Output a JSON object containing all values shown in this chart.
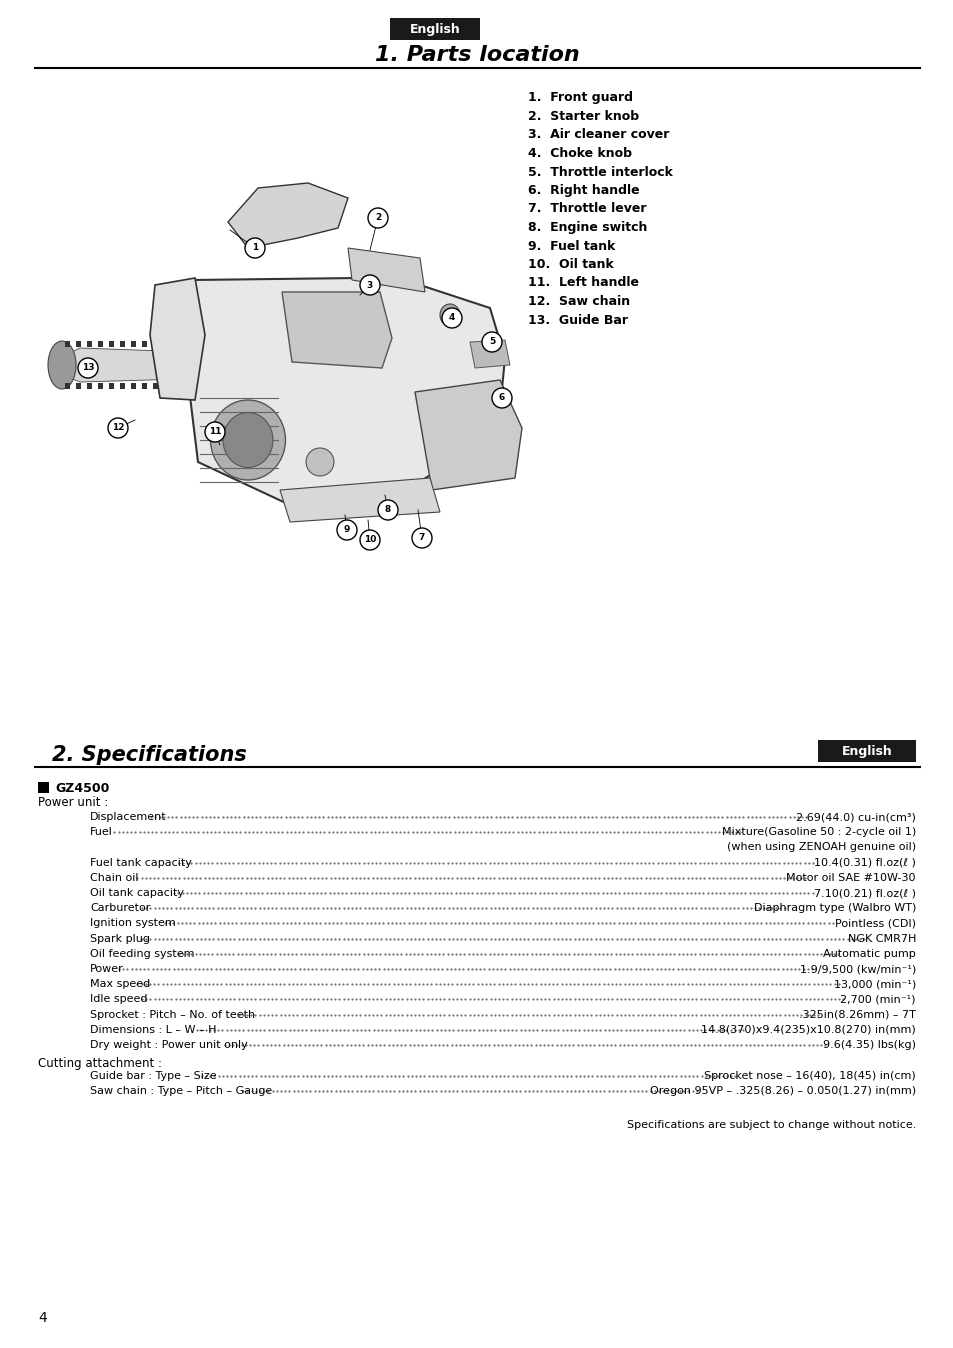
{
  "page_bg": "#ffffff",
  "page_width": 9.54,
  "page_height": 13.48,
  "top_label": "English",
  "top_label_bg": "#1a1a1a",
  "top_label_color": "#ffffff",
  "section1_title": "1. Parts location",
  "parts_list": [
    "1.  Front guard",
    "2.  Starter knob",
    "3.  Air cleaner cover",
    "4.  Choke knob",
    "5.  Throttle interlock",
    "6.  Right handle",
    "7.  Throttle lever",
    "8.  Engine switch",
    "9.  Fuel tank",
    "10.  Oil tank",
    "11.  Left handle",
    "12.  Saw chain",
    "13.  Guide Bar"
  ],
  "section2_title": "2. Specifications",
  "english_label2": "English",
  "model": "GZ4500",
  "power_unit_label": "Power unit :",
  "specs": [
    [
      "Displacement",
      "2.69(44.0) cu-in(cm³)"
    ],
    [
      "Fuel",
      "Mixture(Gasoline 50 : 2-cycle oil 1)"
    ],
    [
      "",
      "(when using ZENOAH genuine oil)"
    ],
    [
      "Fuel tank capacity",
      "10.4(0.31) fl.oz(ℓ )"
    ],
    [
      "Chain oil",
      "Motor oil SAE #10W-30"
    ],
    [
      "Oil tank capacity",
      "7.10(0.21) fl.oz(ℓ )"
    ],
    [
      "Carburetor",
      "Diaphragm type (Walbro WT)"
    ],
    [
      "Ignition system",
      "Pointless (CDI)"
    ],
    [
      "Spark plug",
      "NGK CMR7H"
    ],
    [
      "Oil feeding system",
      "Automatic pump"
    ],
    [
      "Power",
      "1.9/9,500 (kw/min⁻¹)"
    ],
    [
      "Max speed",
      "13,000 (min⁻¹)"
    ],
    [
      "Idle speed",
      "2,700 (min⁻¹)"
    ],
    [
      "Sprocket : Pitch – No. of teeth",
      ".325in(8.26mm) – 7T"
    ],
    [
      "Dimensions : L – W – H",
      "14.8(370)x9.4(235)x10.8(270) in(mm)"
    ],
    [
      "Dry weight : Power unit only",
      "9.6(4.35) lbs(kg)"
    ]
  ],
  "cutting_attachment_label": "Cutting attachment :",
  "cutting_specs": [
    [
      "Guide bar : Type – Size",
      "Sprocket nose – 16(40), 18(45) in(cm)"
    ],
    [
      "Saw chain : Type – Pitch – Gauge",
      "Oregon 95VP – .325(8.26) – 0.050(1.27) in(mm)"
    ]
  ],
  "footer_note": "Specifications are subject to change without notice.",
  "page_number": "4",
  "divider_color": "#000000",
  "text_color": "#000000"
}
